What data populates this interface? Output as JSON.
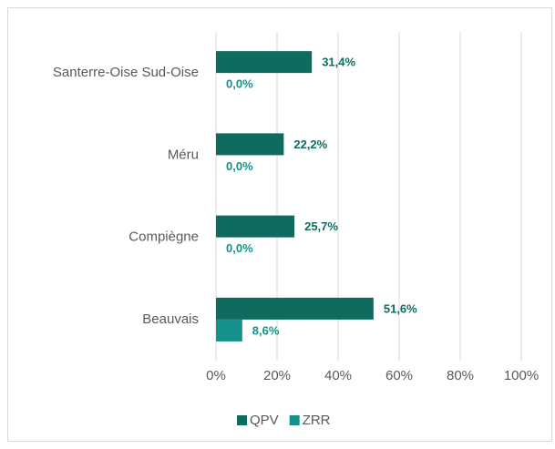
{
  "chart_data": {
    "type": "bar",
    "orientation": "horizontal",
    "categories": [
      "Santerre-Oise Sud-Oise",
      "Méru",
      "Compiègne",
      "Beauvais"
    ],
    "series": [
      {
        "name": "QPV",
        "color": "#0e6b5e",
        "values": [
          31.4,
          22.2,
          25.7,
          51.6
        ],
        "value_labels": [
          "31,4%",
          "22,2%",
          "25,7%",
          "51,6%"
        ]
      },
      {
        "name": "ZRR",
        "color": "#13918a",
        "values": [
          0.0,
          0.0,
          0.0,
          8.6
        ],
        "value_labels": [
          "0,0%",
          "0,0%",
          "0,0%",
          "8,6%"
        ]
      }
    ],
    "xlim": [
      0,
      100
    ],
    "xticks": [
      {
        "value": 0,
        "label": "0%"
      },
      {
        "value": 20,
        "label": "20%"
      },
      {
        "value": 40,
        "label": "40%"
      },
      {
        "value": 60,
        "label": "60%"
      },
      {
        "value": 80,
        "label": "80%"
      },
      {
        "value": 100,
        "label": "100%"
      }
    ],
    "grid": true,
    "legend": "bottom"
  }
}
